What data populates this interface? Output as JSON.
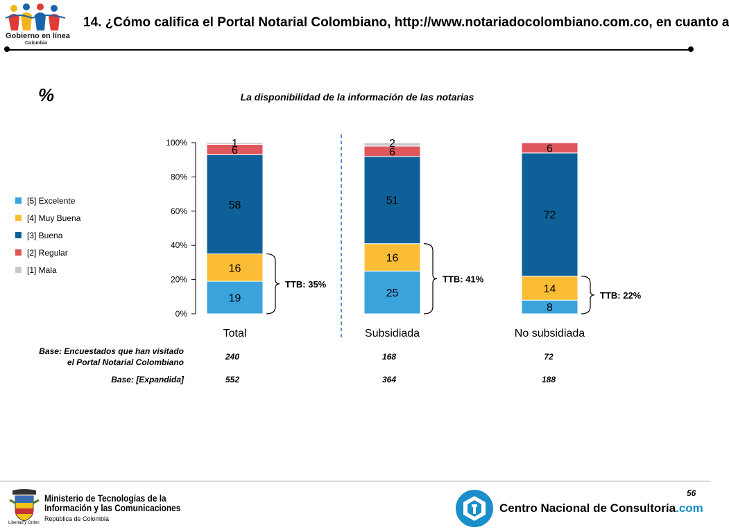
{
  "header": {
    "logo_text": "Gobierno en línea",
    "logo_subtext": "Colombia",
    "title": "14. ¿Cómo califica el Portal Notarial Colombiano, http://www.notariadocolombiano.com.co, en cuanto a"
  },
  "chart_header": {
    "unit_symbol": "%",
    "subtitle": "La disponibilidad de la información de las notarias"
  },
  "colors": {
    "excelente": "#3aa3dc",
    "muy_buena": "#fbbd35",
    "buena": "#0e6198",
    "regular": "#e0575b",
    "mala": "#c9c9c9"
  },
  "legend": [
    {
      "key": "excelente",
      "label": "[5] Excelente"
    },
    {
      "key": "muy_buena",
      "label": "[4] Muy Buena"
    },
    {
      "key": "buena",
      "label": "[3] Buena"
    },
    {
      "key": "regular",
      "label": "[2] Regular"
    },
    {
      "key": "mala",
      "label": "[1] Mala"
    }
  ],
  "chart_data": {
    "type": "bar",
    "stacked": true,
    "categories": [
      "Total",
      "Subsidiada",
      "No subsidiada"
    ],
    "series": [
      {
        "name": "[5] Excelente",
        "key": "excelente",
        "values": [
          19,
          25,
          8
        ]
      },
      {
        "name": "[4] Muy Buena",
        "key": "muy_buena",
        "values": [
          16,
          16,
          14
        ]
      },
      {
        "name": "[3] Buena",
        "key": "buena",
        "values": [
          58,
          51,
          72
        ]
      },
      {
        "name": "[2] Regular",
        "key": "regular",
        "values": [
          6,
          6,
          6
        ]
      },
      {
        "name": "[1] Mala",
        "key": "mala",
        "values": [
          1,
          2,
          0
        ]
      }
    ],
    "yticks": [
      "0%",
      "20%",
      "40%",
      "60%",
      "80%",
      "100%"
    ],
    "ylim": [
      0,
      100
    ],
    "ttb": [
      "TTB: 35%",
      "TTB: 41%",
      "TTB: 22%"
    ]
  },
  "bases": [
    {
      "label_lines": [
        "Base: Encuestados que han visitado",
        "el Portal Notarial Colombiano"
      ],
      "values": [
        "240",
        "168",
        "72"
      ]
    },
    {
      "label_lines": [
        "Base: [Expandida]"
      ],
      "values": [
        "552",
        "364",
        "188"
      ]
    }
  ],
  "footer": {
    "ministry_lines": [
      "Ministerio de Tecnologías de la",
      "Información y las Comunicaciones"
    ],
    "ministry_sub": "República de Colombia",
    "ministry_motto": "Libertad y Orden",
    "cnc_name": "Centro Nacional de Consultoría",
    "cnc_suffix": ".com",
    "page_number": "56"
  }
}
